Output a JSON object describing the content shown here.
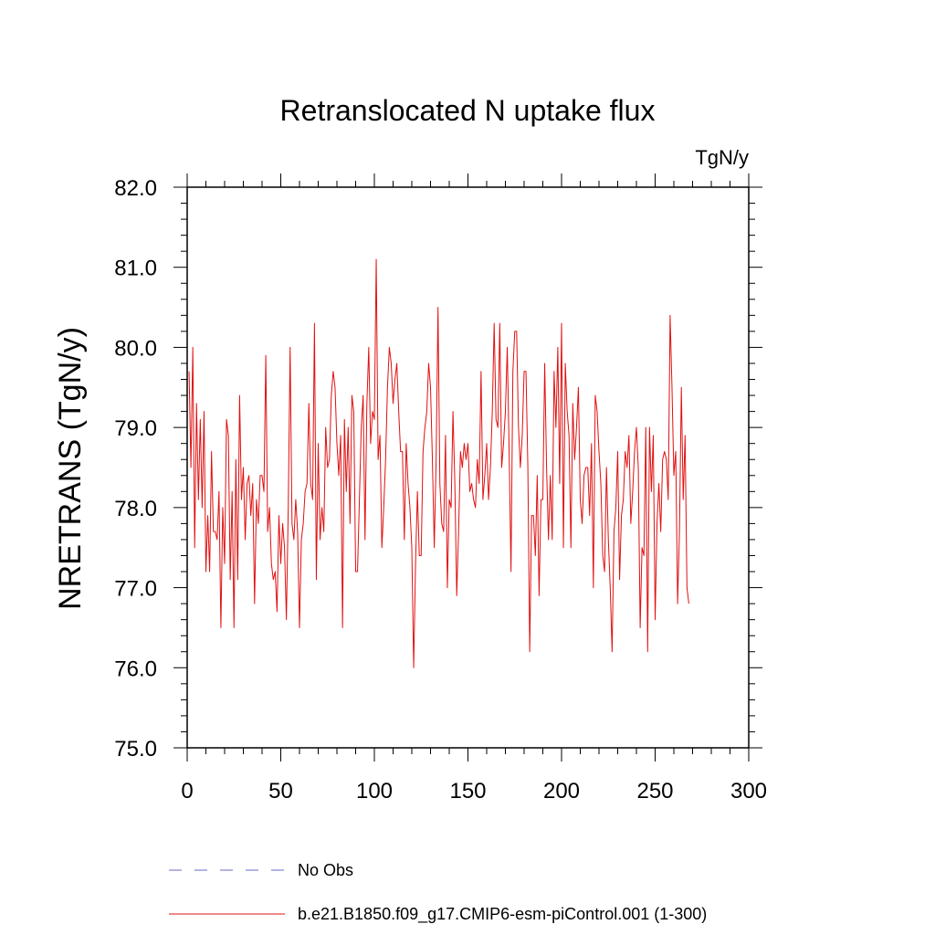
{
  "chart_data": {
    "type": "line",
    "title": "Retranslocated N uptake flux",
    "units": "TgN/y",
    "ylabel": "NRETRANS  (TgN/y)",
    "xlabel": "",
    "xlim": [
      0,
      300
    ],
    "ylim": [
      75.0,
      82.0
    ],
    "x_ticks": [
      0,
      50,
      100,
      150,
      200,
      250,
      300
    ],
    "x_tick_labels": [
      "0",
      "50",
      "100",
      "150",
      "200",
      "250",
      "300"
    ],
    "y_ticks": [
      75,
      76,
      77,
      78,
      79,
      80,
      81,
      82
    ],
    "y_tick_labels": [
      "75.0",
      "76.0",
      "77.0",
      "78.0",
      "79.0",
      "80.0",
      "81.0",
      "82.0"
    ],
    "grid": false,
    "legend_position": "bottom",
    "legend": [
      {
        "label": "No Obs",
        "color": "#6a6ac8",
        "style": "dashed"
      },
      {
        "label": "b.e21.B1850.f09_g17.CMIP6-esm-piControl.001 (1-300)",
        "color": "#e01010",
        "style": "solid"
      }
    ],
    "series": [
      {
        "name": "b.e21.B1850.f09_g17.CMIP6-esm-piControl.001 (1-300)",
        "color": "#e01010",
        "x_start": 1,
        "x_step": 1,
        "values": [
          79.7,
          78.5,
          80.0,
          77.5,
          79.3,
          78.1,
          79.1,
          78.0,
          79.2,
          77.2,
          77.9,
          77.2,
          78.7,
          77.7,
          77.7,
          77.6,
          78.2,
          76.5,
          78.0,
          77.3,
          79.1,
          78.9,
          77.1,
          78.2,
          76.5,
          78.6,
          77.1,
          79.4,
          78.1,
          78.5,
          77.6,
          78.3,
          78.4,
          77.9,
          78.3,
          76.8,
          78.1,
          77.8,
          78.4,
          78.4,
          78.2,
          79.9,
          77.7,
          78.0,
          77.3,
          77.1,
          77.2,
          76.7,
          77.9,
          77.3,
          77.8,
          77.5,
          76.6,
          78.0,
          80.0,
          77.8,
          77.6,
          78.1,
          77.7,
          76.5,
          77.6,
          77.8,
          78.2,
          78.3,
          79.3,
          78.3,
          78.1,
          80.3,
          77.1,
          78.8,
          77.6,
          78.0,
          77.7,
          79.0,
          78.5,
          78.6,
          79.4,
          79.7,
          79.5,
          78.8,
          78.4,
          78.9,
          76.5,
          79.1,
          78.2,
          79.0,
          77.8,
          79.4,
          79.2,
          77.2,
          77.2,
          78.1,
          79.0,
          79.4,
          77.6,
          79.3,
          80.0,
          78.8,
          79.2,
          79.1,
          81.1,
          78.6,
          78.9,
          77.5,
          78.0,
          78.6,
          79.5,
          80.0,
          79.8,
          79.3,
          79.6,
          79.8,
          79.2,
          78.7,
          78.7,
          77.6,
          78.8,
          78.3,
          78.0,
          77.5,
          76.0,
          77.3,
          78.2,
          77.4,
          77.4,
          78.7,
          79.0,
          79.2,
          79.8,
          79.5,
          78.6,
          77.5,
          78.6,
          80.5,
          78.3,
          77.8,
          77.7,
          78.9,
          77.0,
          78.1,
          78.0,
          79.2,
          78.3,
          76.9,
          77.7,
          78.7,
          78.5,
          78.8,
          78.6,
          78.8,
          78.2,
          78.3,
          78.1,
          78.0,
          78.6,
          78.3,
          79.7,
          78.1,
          78.4,
          78.8,
          78.1,
          78.5,
          79.2,
          80.3,
          79.1,
          79.0,
          80.3,
          78.5,
          78.8,
          79.2,
          80.0,
          78.7,
          77.2,
          79.7,
          80.2,
          80.2,
          79.0,
          78.5,
          78.9,
          79.7,
          79.7,
          78.5,
          76.2,
          77.9,
          77.9,
          77.4,
          78.4,
          76.9,
          78.1,
          78.1,
          79.8,
          78.5,
          77.6,
          78.4,
          77.6,
          79.7,
          79.0,
          80.0,
          78.3,
          80.3,
          77.5,
          79.8,
          79.2,
          78.9,
          77.5,
          79.3,
          78.6,
          79.0,
          79.5,
          78.1,
          77.8,
          78.4,
          78.5,
          78.5,
          77.9,
          78.8,
          77.0,
          79.4,
          79.2,
          78.7,
          78.3,
          77.4,
          77.2,
          78.5,
          77.6,
          77.0,
          76.2,
          77.7,
          78.0,
          78.7,
          77.1,
          77.9,
          78.1,
          78.7,
          78.5,
          78.9,
          77.8,
          78.2,
          78.7,
          79.0,
          78.5,
          76.5,
          77.5,
          77.4,
          79.0,
          76.2,
          79.0,
          78.2,
          78.9,
          76.6,
          77.8,
          78.3,
          77.7,
          78.6,
          78.7,
          78.6,
          78.1,
          80.4,
          79.5,
          78.4,
          78.7,
          76.8,
          77.7,
          79.5,
          78.1,
          78.9,
          77.0,
          76.8
        ]
      }
    ]
  }
}
